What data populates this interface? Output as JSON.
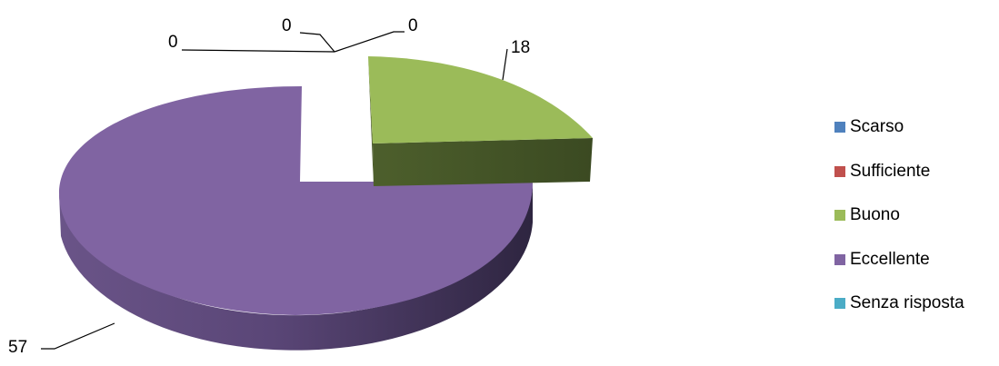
{
  "chart_data": {
    "type": "pie",
    "title": "",
    "categories": [
      "Scarso",
      "Sufficiente",
      "Buono",
      "Eccellente",
      "Senza risposta"
    ],
    "values": [
      0,
      0,
      18,
      57,
      0
    ],
    "colors": [
      "#4f81bd",
      "#c0504d",
      "#9bbb59",
      "#8064a2",
      "#4bacc6"
    ],
    "data_labels": [
      "0",
      "0",
      "18",
      "57",
      "0"
    ],
    "style": "3d-exploded",
    "legend_position": "right"
  }
}
